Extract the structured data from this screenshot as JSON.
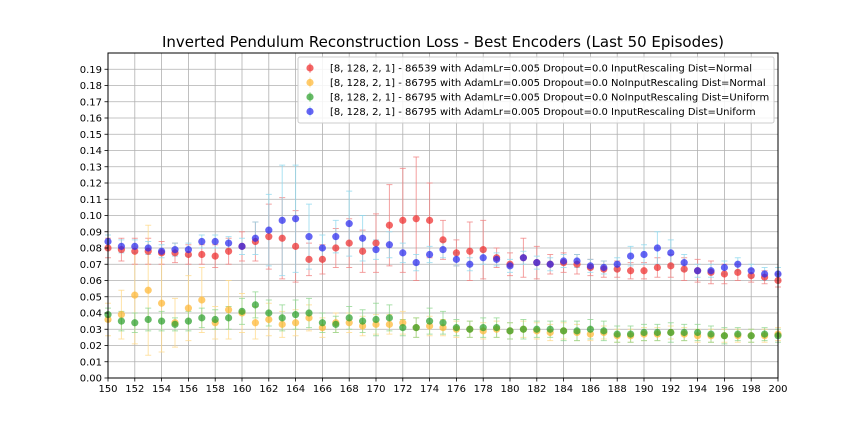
{
  "chart_data": {
    "type": "scatter",
    "title": "Inverted Pendulum Reconstruction Loss - Best Encoders (Last 50 Episodes)",
    "xlabel": "",
    "ylabel": "",
    "xlim": [
      150,
      200
    ],
    "ylim": [
      0.0,
      0.2
    ],
    "xticks": [
      150,
      152,
      154,
      156,
      158,
      160,
      162,
      164,
      166,
      168,
      170,
      172,
      174,
      176,
      178,
      180,
      182,
      184,
      186,
      188,
      190,
      192,
      194,
      196,
      198,
      200
    ],
    "yticks": [
      0.0,
      0.01,
      0.02,
      0.03,
      0.04,
      0.05,
      0.06,
      0.07,
      0.08,
      0.09,
      0.1,
      0.11,
      0.12,
      0.13,
      0.14,
      0.15,
      0.16,
      0.17,
      0.18,
      0.19
    ],
    "grid": true,
    "legend_position": "top-right",
    "series": [
      {
        "name": "[8, 128, 2, 1] - 86539 with AdamLr=0.005 Dropout=0.0 InputRescaling Dist=Normal",
        "color": "#ee2c2c",
        "err_color": "#f08080",
        "x": [
          150,
          151,
          152,
          153,
          154,
          155,
          156,
          157,
          158,
          159,
          160,
          161,
          162,
          163,
          164,
          165,
          166,
          167,
          168,
          169,
          170,
          171,
          172,
          173,
          174,
          175,
          176,
          177,
          178,
          179,
          180,
          181,
          182,
          183,
          184,
          185,
          186,
          187,
          188,
          189,
          190,
          191,
          192,
          193,
          194,
          195,
          196,
          197,
          198,
          199,
          200
        ],
        "y": [
          0.08,
          0.079,
          0.078,
          0.078,
          0.077,
          0.077,
          0.076,
          0.076,
          0.075,
          0.078,
          0.081,
          0.084,
          0.087,
          0.086,
          0.081,
          0.073,
          0.073,
          0.08,
          0.083,
          0.078,
          0.083,
          0.094,
          0.097,
          0.098,
          0.097,
          0.085,
          0.077,
          0.078,
          0.079,
          0.074,
          0.07,
          0.074,
          0.071,
          0.07,
          0.071,
          0.07,
          0.068,
          0.067,
          0.067,
          0.066,
          0.066,
          0.068,
          0.069,
          0.067,
          0.066,
          0.065,
          0.064,
          0.065,
          0.063,
          0.062,
          0.06
        ],
        "err": [
          0.006,
          0.007,
          0.008,
          0.008,
          0.007,
          0.006,
          0.006,
          0.006,
          0.007,
          0.008,
          0.009,
          0.012,
          0.02,
          0.025,
          0.022,
          0.01,
          0.009,
          0.012,
          0.015,
          0.013,
          0.018,
          0.025,
          0.032,
          0.038,
          0.023,
          0.012,
          0.008,
          0.018,
          0.018,
          0.006,
          0.007,
          0.012,
          0.01,
          0.006,
          0.006,
          0.006,
          0.005,
          0.005,
          0.005,
          0.005,
          0.005,
          0.006,
          0.007,
          0.007,
          0.007,
          0.007,
          0.006,
          0.005,
          0.004,
          0.004,
          0.004
        ]
      },
      {
        "name": "[8, 128, 2, 1] - 86795 with AdamLr=0.005 Dropout=0.0 NoInputRescaling Dist=Normal",
        "color": "#ffb733",
        "err_color": "#ffd98a",
        "x": [
          150,
          151,
          152,
          153,
          154,
          155,
          156,
          157,
          158,
          159,
          160,
          161,
          162,
          163,
          164,
          165,
          166,
          167,
          168,
          169,
          170,
          171,
          172,
          173,
          174,
          175,
          176,
          177,
          178,
          179,
          180,
          181,
          182,
          183,
          184,
          185,
          186,
          187,
          188,
          189,
          190,
          191,
          192,
          193,
          194,
          195,
          196,
          197,
          198,
          199,
          200
        ],
        "y": [
          0.036,
          0.039,
          0.051,
          0.054,
          0.046,
          0.034,
          0.043,
          0.048,
          0.034,
          0.042,
          0.04,
          0.034,
          0.036,
          0.033,
          0.034,
          0.037,
          0.031,
          0.034,
          0.034,
          0.032,
          0.033,
          0.033,
          0.034,
          0.031,
          0.032,
          0.031,
          0.03,
          0.03,
          0.029,
          0.03,
          0.029,
          0.03,
          0.029,
          0.028,
          0.029,
          0.028,
          0.027,
          0.028,
          0.026,
          0.026,
          0.027,
          0.027,
          0.028,
          0.027,
          0.026,
          0.026,
          0.026,
          0.026,
          0.026,
          0.026,
          0.027
        ],
        "err": [
          0.01,
          0.015,
          0.03,
          0.04,
          0.03,
          0.015,
          0.02,
          0.02,
          0.01,
          0.018,
          0.012,
          0.01,
          0.01,
          0.008,
          0.008,
          0.008,
          0.006,
          0.006,
          0.006,
          0.006,
          0.006,
          0.006,
          0.007,
          0.006,
          0.006,
          0.005,
          0.005,
          0.005,
          0.005,
          0.005,
          0.005,
          0.005,
          0.005,
          0.005,
          0.005,
          0.005,
          0.004,
          0.004,
          0.004,
          0.004,
          0.004,
          0.004,
          0.004,
          0.004,
          0.004,
          0.004,
          0.004,
          0.004,
          0.004,
          0.004,
          0.004
        ]
      },
      {
        "name": "[8, 128, 2, 1] - 86795 with AdamLr=0.005 Dropout=0.0 NoInputRescaling Dist=Uniform",
        "color": "#2ca02c",
        "err_color": "#8fd68f",
        "x": [
          150,
          151,
          152,
          153,
          154,
          155,
          156,
          157,
          158,
          159,
          160,
          161,
          162,
          163,
          164,
          165,
          166,
          167,
          168,
          169,
          170,
          171,
          172,
          173,
          174,
          175,
          176,
          177,
          178,
          179,
          180,
          181,
          182,
          183,
          184,
          185,
          186,
          187,
          188,
          189,
          190,
          191,
          192,
          193,
          194,
          195,
          196,
          197,
          198,
          199,
          200
        ],
        "y": [
          0.039,
          0.035,
          0.034,
          0.036,
          0.035,
          0.033,
          0.035,
          0.037,
          0.036,
          0.037,
          0.041,
          0.045,
          0.04,
          0.037,
          0.039,
          0.04,
          0.034,
          0.033,
          0.037,
          0.035,
          0.036,
          0.037,
          0.031,
          0.031,
          0.035,
          0.034,
          0.031,
          0.03,
          0.031,
          0.031,
          0.029,
          0.03,
          0.03,
          0.03,
          0.029,
          0.029,
          0.03,
          0.029,
          0.027,
          0.027,
          0.028,
          0.028,
          0.028,
          0.028,
          0.028,
          0.027,
          0.026,
          0.027,
          0.026,
          0.027,
          0.026
        ],
        "err": [
          0.004,
          0.006,
          0.006,
          0.007,
          0.006,
          0.004,
          0.006,
          0.006,
          0.006,
          0.007,
          0.008,
          0.008,
          0.008,
          0.008,
          0.009,
          0.009,
          0.006,
          0.005,
          0.007,
          0.007,
          0.01,
          0.008,
          0.005,
          0.006,
          0.008,
          0.007,
          0.005,
          0.005,
          0.006,
          0.006,
          0.005,
          0.006,
          0.005,
          0.005,
          0.006,
          0.006,
          0.006,
          0.006,
          0.005,
          0.005,
          0.005,
          0.005,
          0.006,
          0.005,
          0.005,
          0.005,
          0.005,
          0.004,
          0.004,
          0.004,
          0.004
        ]
      },
      {
        "name": "[8, 128, 2, 1] - 86795 with AdamLr=0.005 Dropout=0.0 InputRescaling Dist=Uniform",
        "color": "#2a2aee",
        "err_color": "#8fd8ee",
        "x": [
          150,
          151,
          152,
          153,
          154,
          155,
          156,
          157,
          158,
          159,
          160,
          161,
          162,
          163,
          164,
          165,
          166,
          167,
          168,
          169,
          170,
          171,
          172,
          173,
          174,
          175,
          176,
          177,
          178,
          179,
          180,
          181,
          182,
          183,
          184,
          185,
          186,
          187,
          188,
          189,
          190,
          191,
          192,
          193,
          194,
          195,
          196,
          197,
          198,
          199,
          200
        ],
        "y": [
          0.084,
          0.081,
          0.081,
          0.08,
          0.078,
          0.079,
          0.079,
          0.084,
          0.084,
          0.083,
          0.081,
          0.086,
          0.091,
          0.097,
          0.098,
          0.087,
          0.08,
          0.087,
          0.095,
          0.086,
          0.079,
          0.082,
          0.077,
          0.071,
          0.076,
          0.079,
          0.073,
          0.07,
          0.074,
          0.073,
          0.069,
          0.074,
          0.071,
          0.07,
          0.072,
          0.072,
          0.069,
          0.068,
          0.07,
          0.075,
          0.076,
          0.08,
          0.077,
          0.071,
          0.066,
          0.066,
          0.068,
          0.07,
          0.066,
          0.064,
          0.064
        ],
        "err": [
          0.004,
          0.004,
          0.004,
          0.004,
          0.004,
          0.004,
          0.004,
          0.004,
          0.004,
          0.004,
          0.005,
          0.01,
          0.022,
          0.034,
          0.033,
          0.02,
          0.008,
          0.01,
          0.02,
          0.014,
          0.006,
          0.008,
          0.006,
          0.005,
          0.005,
          0.005,
          0.004,
          0.004,
          0.004,
          0.004,
          0.004,
          0.004,
          0.004,
          0.004,
          0.004,
          0.004,
          0.004,
          0.004,
          0.004,
          0.006,
          0.006,
          0.01,
          0.008,
          0.005,
          0.004,
          0.004,
          0.004,
          0.004,
          0.004,
          0.004,
          0.004
        ]
      }
    ]
  }
}
